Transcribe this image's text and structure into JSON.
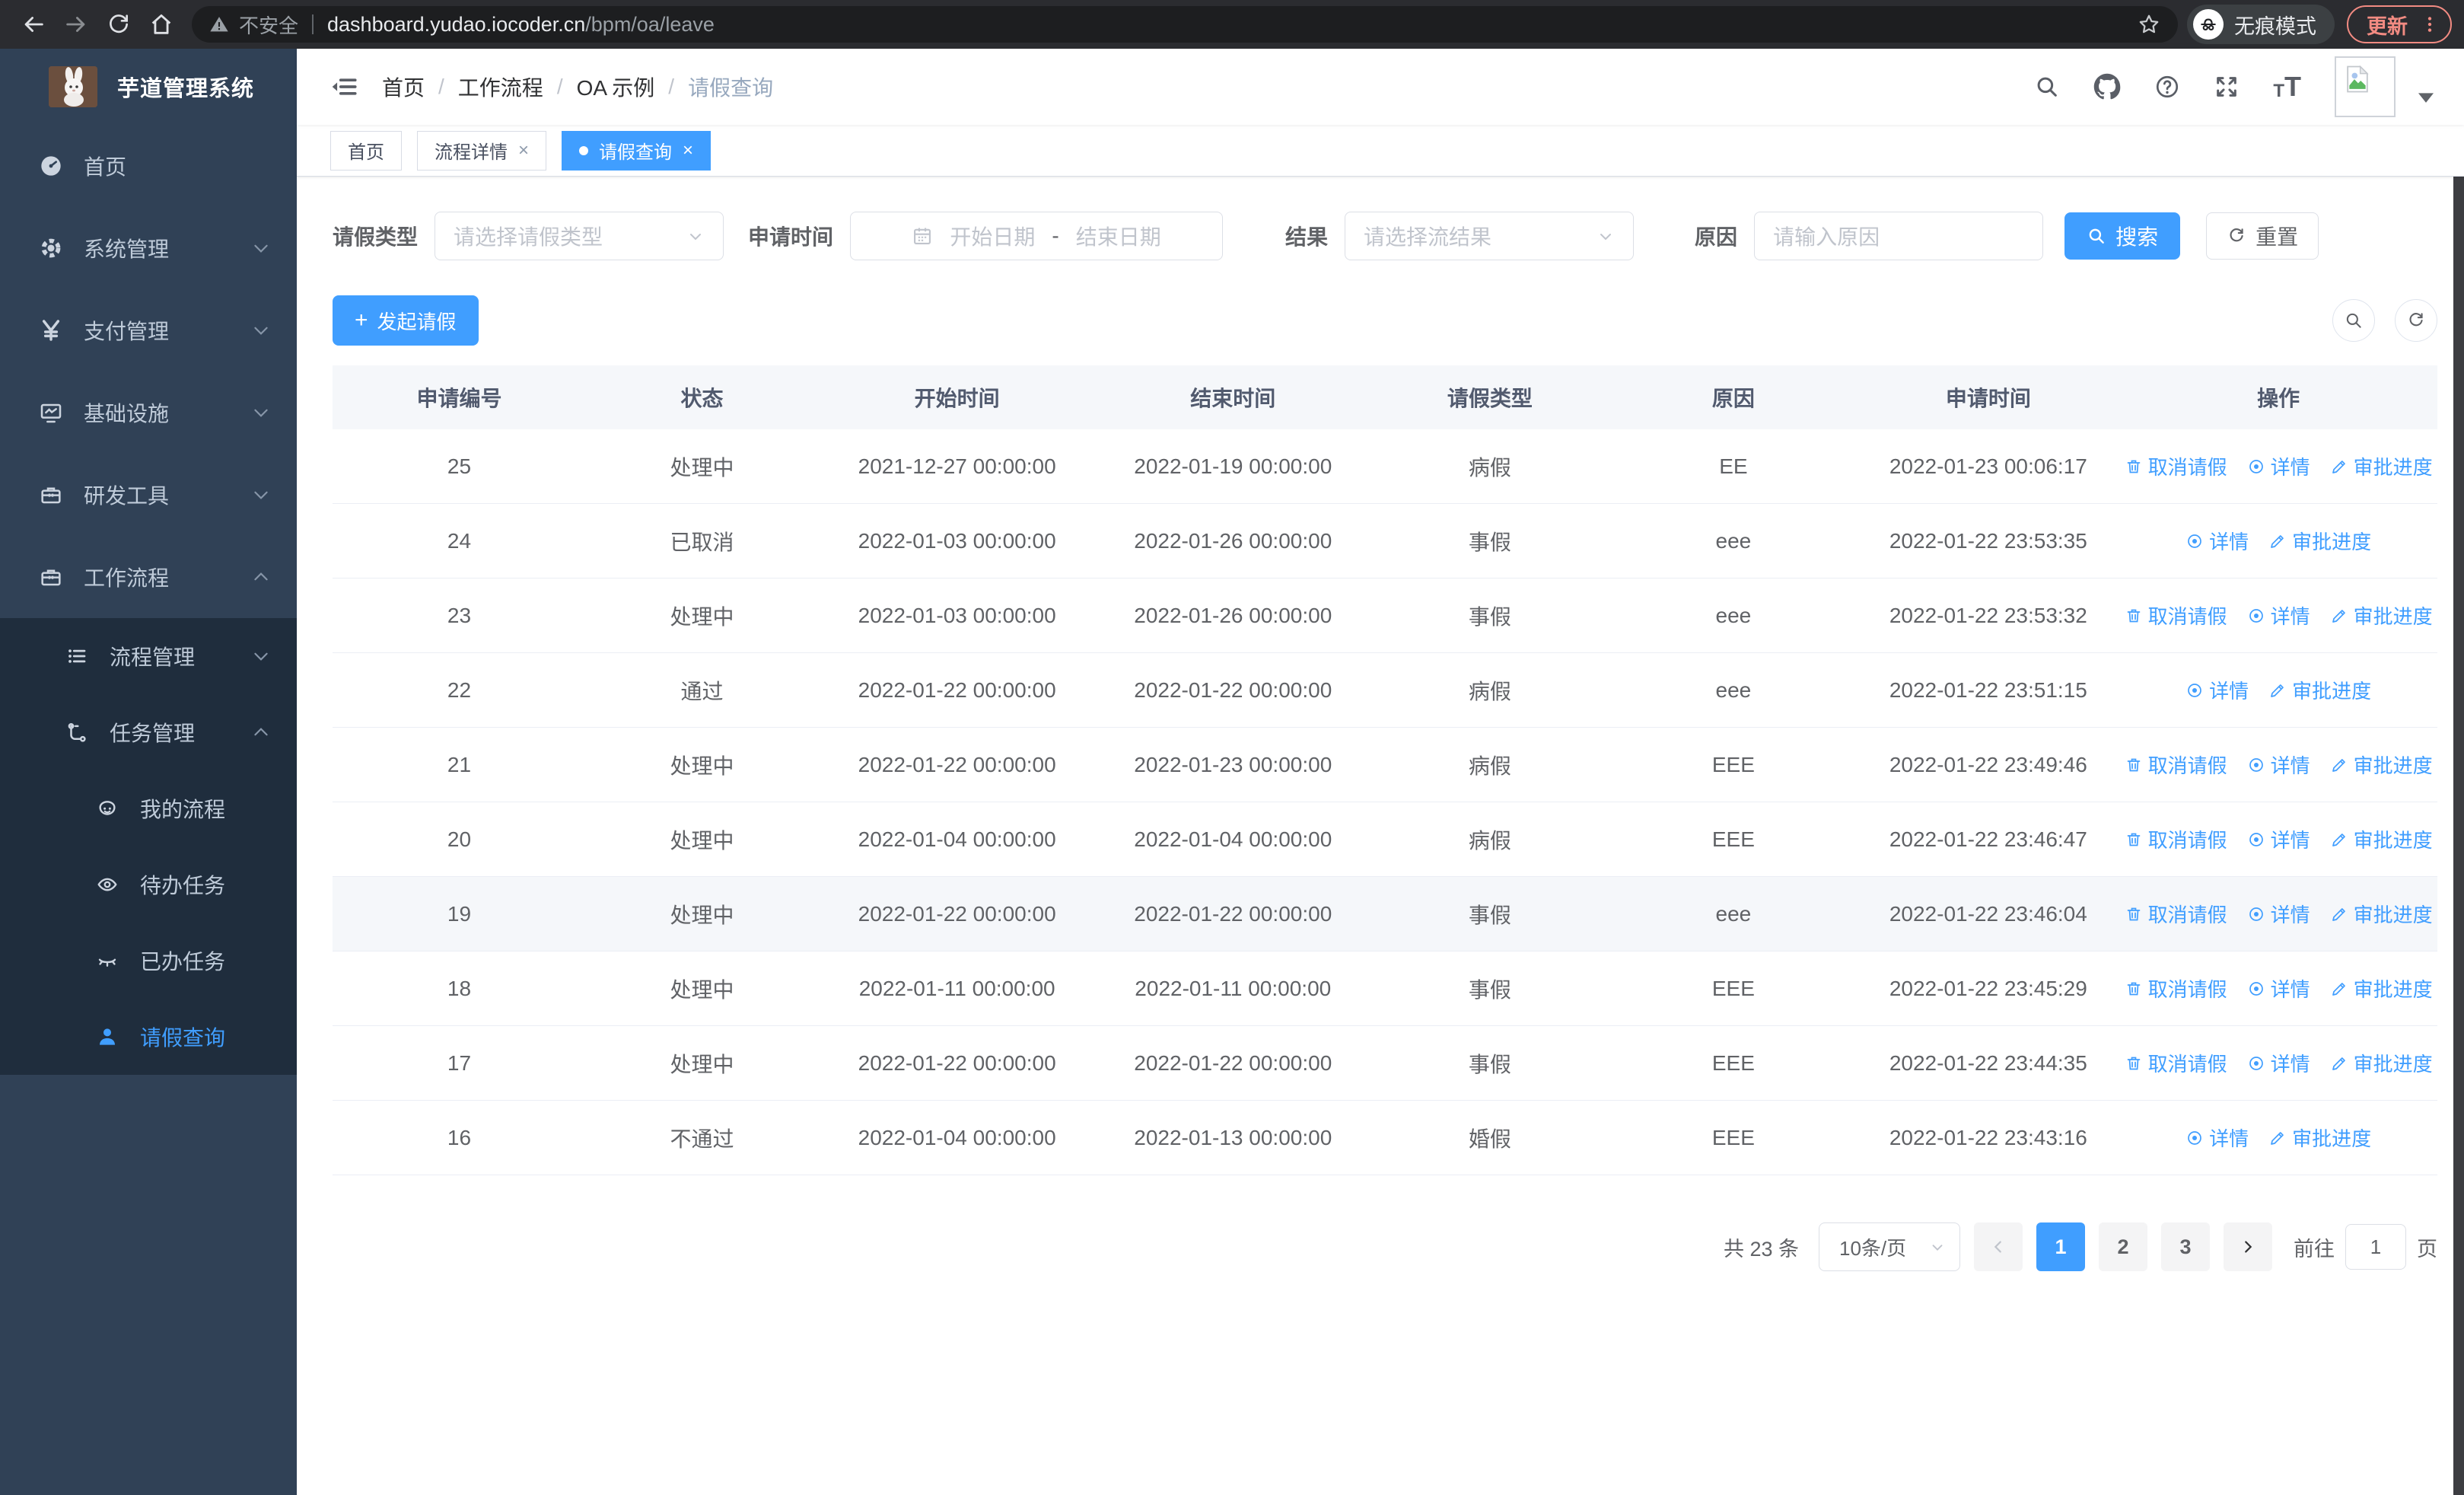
{
  "browser": {
    "security_label": "不安全",
    "url_host": "dashboard.yudao.iocoder.cn",
    "url_path": "/bpm/oa/leave",
    "incognito_label": "无痕模式",
    "update_label": "更新"
  },
  "sidebar": {
    "title": "芋道管理系统",
    "items": [
      {
        "label": "首页",
        "icon": "dashboard-icon"
      },
      {
        "label": "系统管理",
        "icon": "gear-icon"
      },
      {
        "label": "支付管理",
        "icon": "yen-icon"
      },
      {
        "label": "基础设施",
        "icon": "monitor-icon"
      },
      {
        "label": "研发工具",
        "icon": "toolbox-icon"
      },
      {
        "label": "工作流程",
        "icon": "briefcase-icon"
      }
    ],
    "submenu": [
      {
        "label": "流程管理",
        "icon": "list-icon"
      },
      {
        "label": "任务管理",
        "icon": "flow-icon"
      },
      {
        "label": "我的流程",
        "icon": "face-icon"
      },
      {
        "label": "待办任务",
        "icon": "eye-open-icon"
      },
      {
        "label": "已办任务",
        "icon": "eye-closed-icon"
      },
      {
        "label": "请假查询",
        "icon": "person-icon"
      }
    ]
  },
  "breadcrumb": {
    "items": [
      "首页",
      "工作流程",
      "OA 示例",
      "请假查询"
    ]
  },
  "tabs": [
    {
      "label": "首页",
      "closable": false,
      "active": false
    },
    {
      "label": "流程详情",
      "closable": true,
      "active": false
    },
    {
      "label": "请假查询",
      "closable": true,
      "active": true
    }
  ],
  "filters": {
    "leave_type_label": "请假类型",
    "leave_type_placeholder": "请选择请假类型",
    "apply_time_label": "申请时间",
    "start_date_placeholder": "开始日期",
    "range_separator": "-",
    "end_date_placeholder": "结束日期",
    "result_label": "结果",
    "result_placeholder": "请选择流结果",
    "reason_label": "原因",
    "reason_placeholder": "请输入原因",
    "search_label": "搜索",
    "reset_label": "重置"
  },
  "toolbar": {
    "create_label": "发起请假"
  },
  "table": {
    "headers": [
      "申请编号",
      "状态",
      "开始时间",
      "结束时间",
      "请假类型",
      "原因",
      "申请时间",
      "操作"
    ],
    "action_labels": {
      "cancel": "取消请假",
      "detail": "详情",
      "progress": "审批进度"
    },
    "rows": [
      {
        "id": "25",
        "status": "处理中",
        "start": "2021-12-27 00:00:00",
        "end": "2022-01-19 00:00:00",
        "type": "病假",
        "reason": "EE",
        "apply": "2022-01-23 00:06:17",
        "actions": [
          "cancel",
          "detail",
          "progress"
        ],
        "highlight": false
      },
      {
        "id": "24",
        "status": "已取消",
        "start": "2022-01-03 00:00:00",
        "end": "2022-01-26 00:00:00",
        "type": "事假",
        "reason": "eee",
        "apply": "2022-01-22 23:53:35",
        "actions": [
          "detail",
          "progress"
        ],
        "highlight": false
      },
      {
        "id": "23",
        "status": "处理中",
        "start": "2022-01-03 00:00:00",
        "end": "2022-01-26 00:00:00",
        "type": "事假",
        "reason": "eee",
        "apply": "2022-01-22 23:53:32",
        "actions": [
          "cancel",
          "detail",
          "progress"
        ],
        "highlight": false
      },
      {
        "id": "22",
        "status": "通过",
        "start": "2022-01-22 00:00:00",
        "end": "2022-01-22 00:00:00",
        "type": "病假",
        "reason": "eee",
        "apply": "2022-01-22 23:51:15",
        "actions": [
          "detail",
          "progress"
        ],
        "highlight": false
      },
      {
        "id": "21",
        "status": "处理中",
        "start": "2022-01-22 00:00:00",
        "end": "2022-01-23 00:00:00",
        "type": "病假",
        "reason": "EEE",
        "apply": "2022-01-22 23:49:46",
        "actions": [
          "cancel",
          "detail",
          "progress"
        ],
        "highlight": false
      },
      {
        "id": "20",
        "status": "处理中",
        "start": "2022-01-04 00:00:00",
        "end": "2022-01-04 00:00:00",
        "type": "病假",
        "reason": "EEE",
        "apply": "2022-01-22 23:46:47",
        "actions": [
          "cancel",
          "detail",
          "progress"
        ],
        "highlight": false
      },
      {
        "id": "19",
        "status": "处理中",
        "start": "2022-01-22 00:00:00",
        "end": "2022-01-22 00:00:00",
        "type": "事假",
        "reason": "eee",
        "apply": "2022-01-22 23:46:04",
        "actions": [
          "cancel",
          "detail",
          "progress"
        ],
        "highlight": true
      },
      {
        "id": "18",
        "status": "处理中",
        "start": "2022-01-11 00:00:00",
        "end": "2022-01-11 00:00:00",
        "type": "事假",
        "reason": "EEE",
        "apply": "2022-01-22 23:45:29",
        "actions": [
          "cancel",
          "detail",
          "progress"
        ],
        "highlight": false
      },
      {
        "id": "17",
        "status": "处理中",
        "start": "2022-01-22 00:00:00",
        "end": "2022-01-22 00:00:00",
        "type": "事假",
        "reason": "EEE",
        "apply": "2022-01-22 23:44:35",
        "actions": [
          "cancel",
          "detail",
          "progress"
        ],
        "highlight": false
      },
      {
        "id": "16",
        "status": "不通过",
        "start": "2022-01-04 00:00:00",
        "end": "2022-01-13 00:00:00",
        "type": "婚假",
        "reason": "EEE",
        "apply": "2022-01-22 23:43:16",
        "actions": [
          "detail",
          "progress"
        ],
        "highlight": false
      }
    ]
  },
  "pagination": {
    "total_label": "共 23 条",
    "page_size": "10条/页",
    "pages": [
      "1",
      "2",
      "3"
    ],
    "active_page": "1",
    "goto_label": "前往",
    "goto_value": "1",
    "page_suffix": "页"
  },
  "colors": {
    "accent": "#409EFF",
    "sidebar_bg": "#304156",
    "submenu_bg": "#1f2d3d",
    "update_pill": "#f28b82"
  }
}
